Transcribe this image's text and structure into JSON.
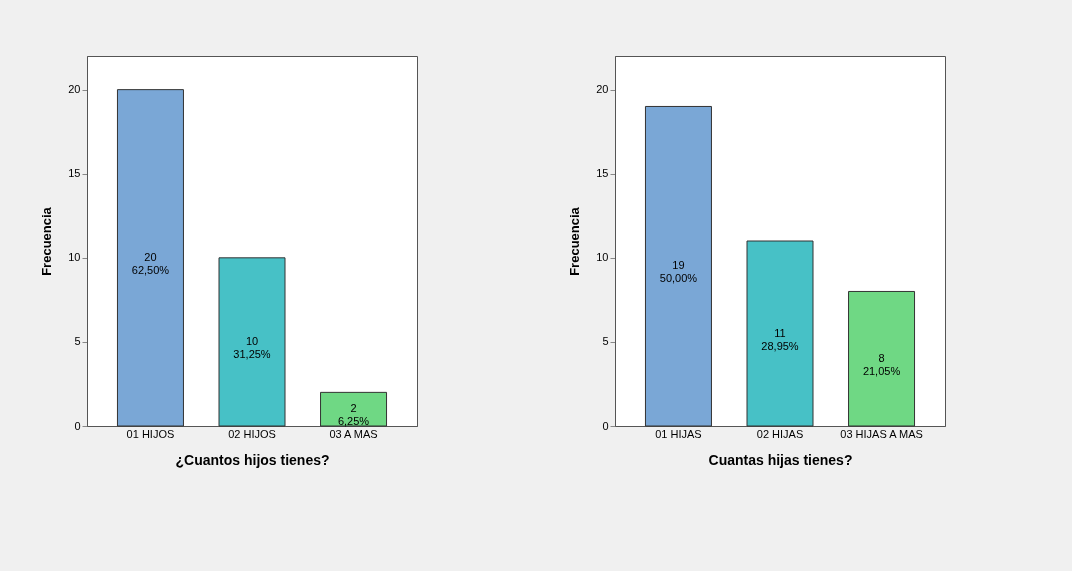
{
  "chart_data": [
    {
      "type": "bar",
      "xlabel": "¿Cuantos hijos tienes?",
      "ylabel": "Frecuencia",
      "categories": [
        "01 HIJOS",
        "02 HIJOS",
        "03 A MAS"
      ],
      "values": [
        20,
        10,
        2
      ],
      "colors": [
        "#7aa7d6",
        "#47c1c6",
        "#6fd884"
      ],
      "value_labels": [
        "20\n62,50%",
        "10\n31,25%",
        "2\n6,25%"
      ],
      "ylim": [
        0,
        22
      ],
      "yticks": [
        0,
        5,
        10,
        15,
        20
      ],
      "grid": false
    },
    {
      "type": "bar",
      "xlabel": "Cuantas hijas tienes?",
      "ylabel": "Frecuencia",
      "categories": [
        "01 HIJAS",
        "02 HIJAS",
        "03 HIJAS A MAS"
      ],
      "values": [
        19,
        11,
        8
      ],
      "colors": [
        "#7aa7d6",
        "#47c1c6",
        "#6fd884"
      ],
      "value_labels": [
        "19\n50,00%",
        "11\n28,95%",
        "8\n21,05%"
      ],
      "ylim": [
        0,
        22
      ],
      "yticks": [
        0,
        5,
        10,
        15,
        20
      ],
      "grid": false
    }
  ]
}
